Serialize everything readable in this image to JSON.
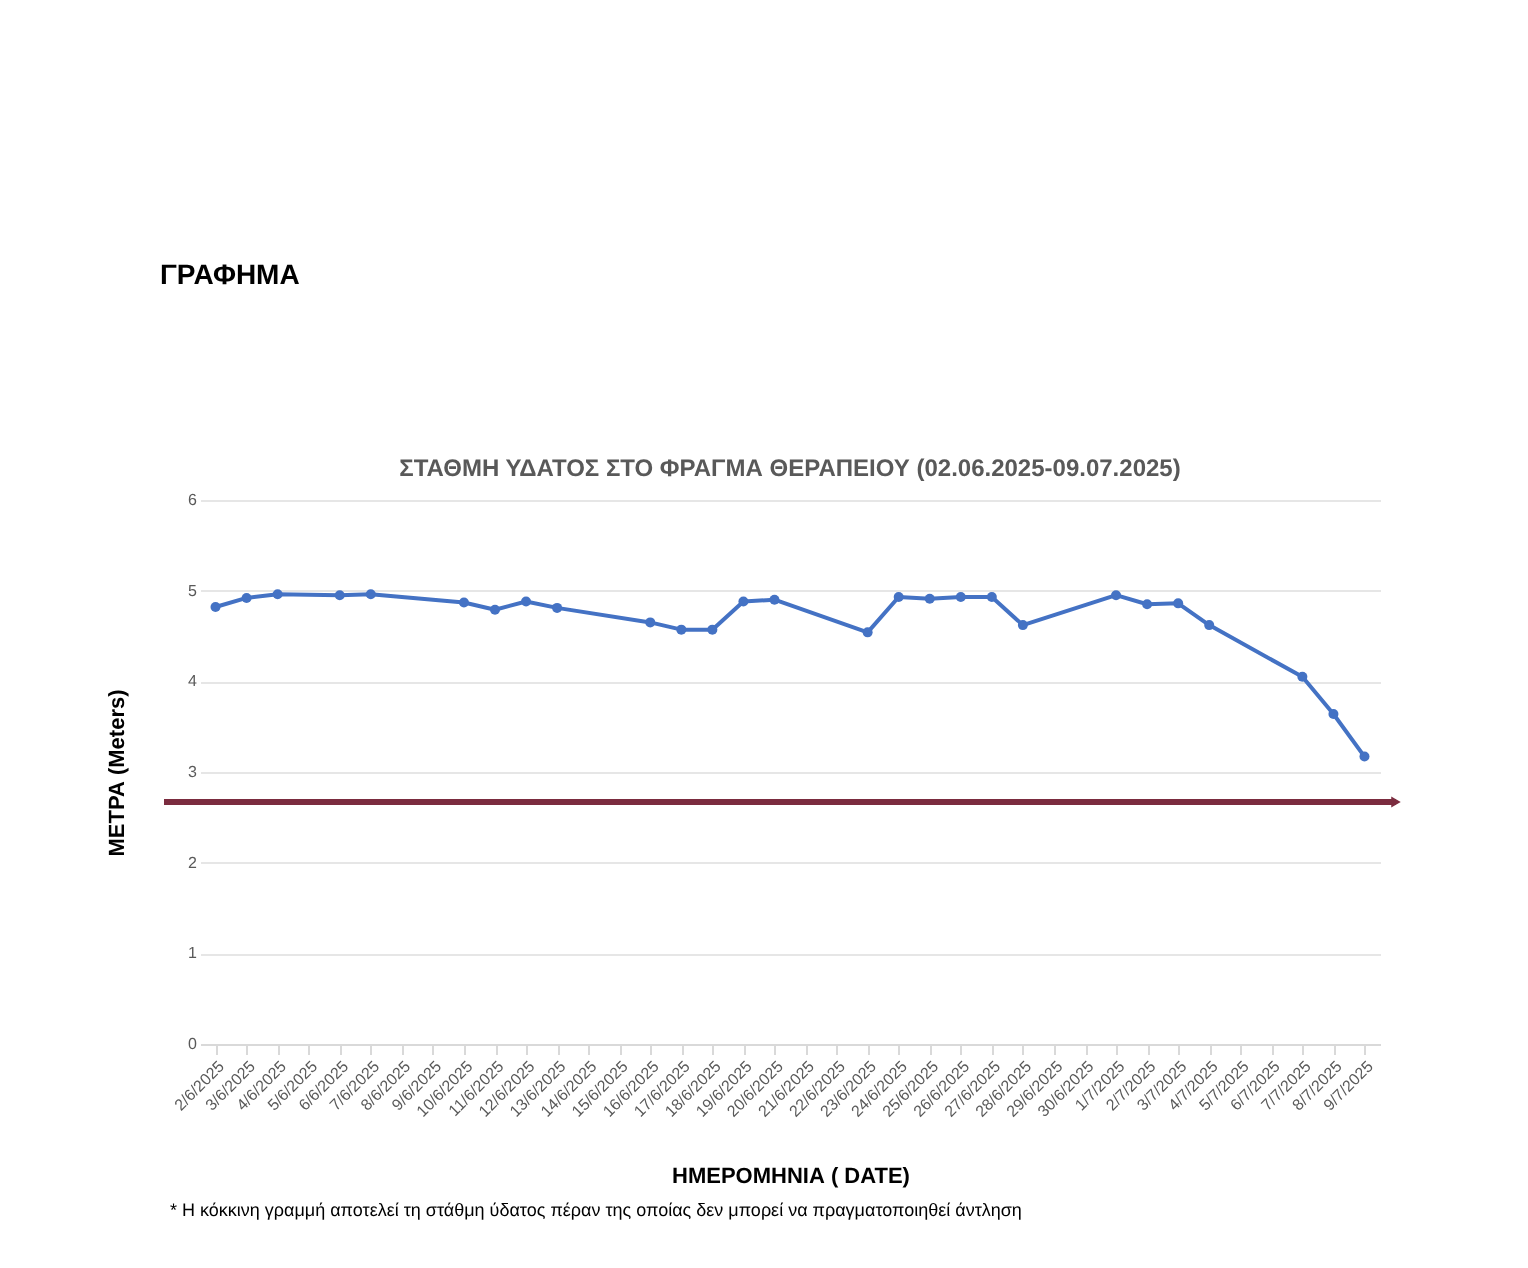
{
  "chart_data": {
    "type": "line",
    "title": "ΣΤΑΘΜΗ ΥΔΑΤΟΣ ΣΤΟ ΦΡΑΓΜΑ ΘΕΡΑΠΕΙΟΥ (02.06.2025-09.07.2025)",
    "xlabel": "ΗΜΕΡΟΜΗΝΙΑ ( DATE)",
    "ylabel": "ΜΕΤΡΑ (Meters)",
    "categories": [
      "2/6/2025",
      "3/6/2025",
      "4/6/2025",
      "5/6/2025",
      "6/6/2025",
      "7/6/2025",
      "8/6/2025",
      "9/6/2025",
      "10/6/2025",
      "11/6/2025",
      "12/6/2025",
      "13/6/2025",
      "14/6/2025",
      "15/6/2025",
      "16/6/2025",
      "17/6/2025",
      "18/6/2025",
      "19/6/2025",
      "20/6/2025",
      "21/6/2025",
      "22/6/2025",
      "23/6/2025",
      "24/6/2025",
      "25/6/2025",
      "26/6/2025",
      "27/6/2025",
      "28/6/2025",
      "29/6/2025",
      "30/6/2025",
      "1/7/2025",
      "2/7/2025",
      "3/7/2025",
      "4/7/2025",
      "5/7/2025",
      "6/7/2025",
      "7/7/2025",
      "8/7/2025",
      "9/7/2025"
    ],
    "series": [
      {
        "color": "#4472c4",
        "values": [
          4.82,
          4.92,
          4.96,
          null,
          4.95,
          4.96,
          null,
          null,
          4.87,
          4.79,
          4.88,
          4.81,
          null,
          null,
          4.65,
          4.57,
          4.57,
          4.88,
          4.9,
          null,
          null,
          4.54,
          4.93,
          4.91,
          4.93,
          4.93,
          4.62,
          null,
          null,
          4.95,
          4.85,
          4.86,
          4.62,
          null,
          null,
          4.05,
          3.64,
          3.17
        ]
      }
    ],
    "ylim": [
      0,
      6
    ],
    "yticks": [
      0,
      1,
      2,
      3,
      4,
      5,
      6
    ],
    "grid": "y",
    "marker": "circle",
    "line_style": "solid",
    "ref_lines": [
      {
        "axis": "y",
        "value": 2.67,
        "color": "#7b2c3f"
      }
    ],
    "annotations": [
      "ΓΡΑΦΗΜΑ",
      "* Η κόκκινη γραμμή αποτελεί τη στάθμη ύδατος πέραν της οποίας δεν μπορεί να πραγματοποιηθεί άντληση"
    ]
  }
}
